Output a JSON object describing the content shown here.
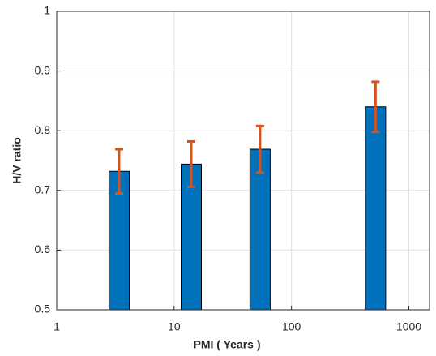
{
  "chart_data": {
    "type": "bar",
    "x_label": "PMI ( Years )",
    "y_label": "H/V ratio",
    "x": [
      3.4,
      14,
      54,
      520
    ],
    "values": [
      0.732,
      0.744,
      0.769,
      0.84
    ],
    "errors": [
      0.037,
      0.038,
      0.039,
      0.042
    ],
    "color": "#0072bd",
    "error_color": "#d95319",
    "xscale": "log",
    "xlim": [
      1,
      1500
    ],
    "xticks": [
      1,
      10,
      100,
      1000
    ],
    "ylim": [
      0.5,
      1
    ],
    "yticks": [
      0.5,
      0.6,
      0.7,
      0.8,
      0.9,
      1
    ],
    "grid": true
  }
}
